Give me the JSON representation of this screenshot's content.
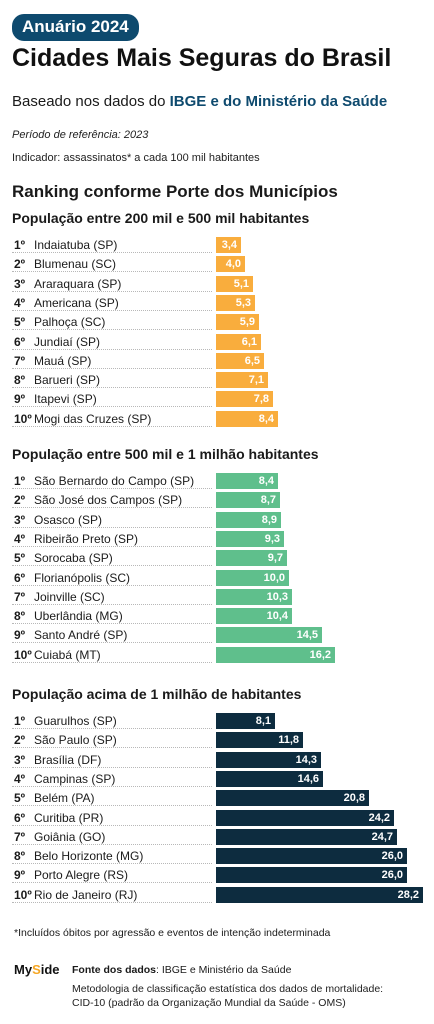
{
  "header": {
    "badge": "Anuário 2024",
    "title": "Cidades Mais Seguras do Brasil",
    "subtitle_prefix": "Baseado nos dados do ",
    "subtitle_highlight": "IBGE e do Ministério da Saúde",
    "period": "Período de referência: 2023",
    "indicator": "Indicador: assassinatos* a cada 100 mil habitantes"
  },
  "ranking_title": "Ranking conforme Porte dos Municípios",
  "chart_data": [
    {
      "type": "bar",
      "title": "População entre 200 mil e 500 mil habitantes",
      "color": "#f9ad3d",
      "text_color": "#ffffff",
      "xlim": [
        0,
        28.2
      ],
      "ranks": [
        "1º",
        "2º",
        "3º",
        "4º",
        "5º",
        "6º",
        "7º",
        "8º",
        "9º",
        "10º"
      ],
      "categories": [
        "Indaiatuba (SP)",
        "Blumenau (SC)",
        "Araraquara (SP)",
        "Americana (SP)",
        "Palhoça (SC)",
        "Jundiaí (SP)",
        "Mauá (SP)",
        "Barueri (SP)",
        "Itapevi (SP)",
        "Mogi das Cruzes (SP)"
      ],
      "values": [
        3.4,
        4.0,
        5.1,
        5.3,
        5.9,
        6.1,
        6.5,
        7.1,
        7.8,
        8.4
      ],
      "labels": [
        "3,4",
        "4,0",
        "5,1",
        "5,3",
        "5,9",
        "6,1",
        "6,5",
        "7,1",
        "7,8",
        "8,4"
      ]
    },
    {
      "type": "bar",
      "title": "População entre 500 mil e 1 milhão habitantes",
      "color": "#5fbf8c",
      "text_color": "#ffffff",
      "xlim": [
        0,
        28.2
      ],
      "ranks": [
        "1º",
        "2º",
        "3º",
        "4º",
        "5º",
        "6º",
        "7º",
        "8º",
        "9º",
        "10º"
      ],
      "categories": [
        "São Bernardo do Campo (SP)",
        "São José dos Campos (SP)",
        "Osasco (SP)",
        "Ribeirão Preto (SP)",
        "Sorocaba (SP)",
        "Florianópolis (SC)",
        "Joinville (SC)",
        "Uberlândia (MG)",
        "Santo André (SP)",
        "Cuiabá (MT)"
      ],
      "values": [
        8.4,
        8.7,
        8.9,
        9.3,
        9.7,
        10.0,
        10.3,
        10.4,
        14.5,
        16.2
      ],
      "labels": [
        "8,4",
        "8,7",
        "8,9",
        "9,3",
        "9,7",
        "10,0",
        "10,3",
        "10,4",
        "14,5",
        "16,2"
      ]
    },
    {
      "type": "bar",
      "title": "População acima de 1 milhão de habitantes",
      "color": "#0d2c3f",
      "text_color": "#ffffff",
      "xlim": [
        0,
        28.2
      ],
      "ranks": [
        "1º",
        "2º",
        "3º",
        "4º",
        "5º",
        "6º",
        "7º",
        "8º",
        "9º",
        "10º"
      ],
      "categories": [
        "Guarulhos (SP)",
        "São Paulo (SP)",
        "Brasília (DF)",
        "Campinas (SP)",
        "Belém (PA)",
        "Curitiba (PR)",
        "Goiânia (GO)",
        "Belo Horizonte (MG)",
        "Porto Alegre (RS)",
        "Rio de Janeiro (RJ)"
      ],
      "values": [
        8.1,
        11.8,
        14.3,
        14.6,
        20.8,
        24.2,
        24.7,
        26.0,
        26.0,
        28.2
      ],
      "labels": [
        "8,1",
        "11,8",
        "14,3",
        "14,6",
        "20,8",
        "24,2",
        "24,7",
        "26,0",
        "26,0",
        "28,2"
      ]
    }
  ],
  "footnote": "*Incluídos óbitos por agressão e eventos de intenção indeterminada",
  "footer": {
    "brand_prefix": "My",
    "brand_i": "S",
    "brand_suffix": "ide",
    "source_label": "Fonte dos dados",
    "source_text": ": IBGE e Ministério da Saúde",
    "method_line1": "Metodologia de classificação estatística dos dados de mortalidade:",
    "method_line2": "CID-10 (padrão da Organização Mundial da Saúde - OMS)"
  }
}
